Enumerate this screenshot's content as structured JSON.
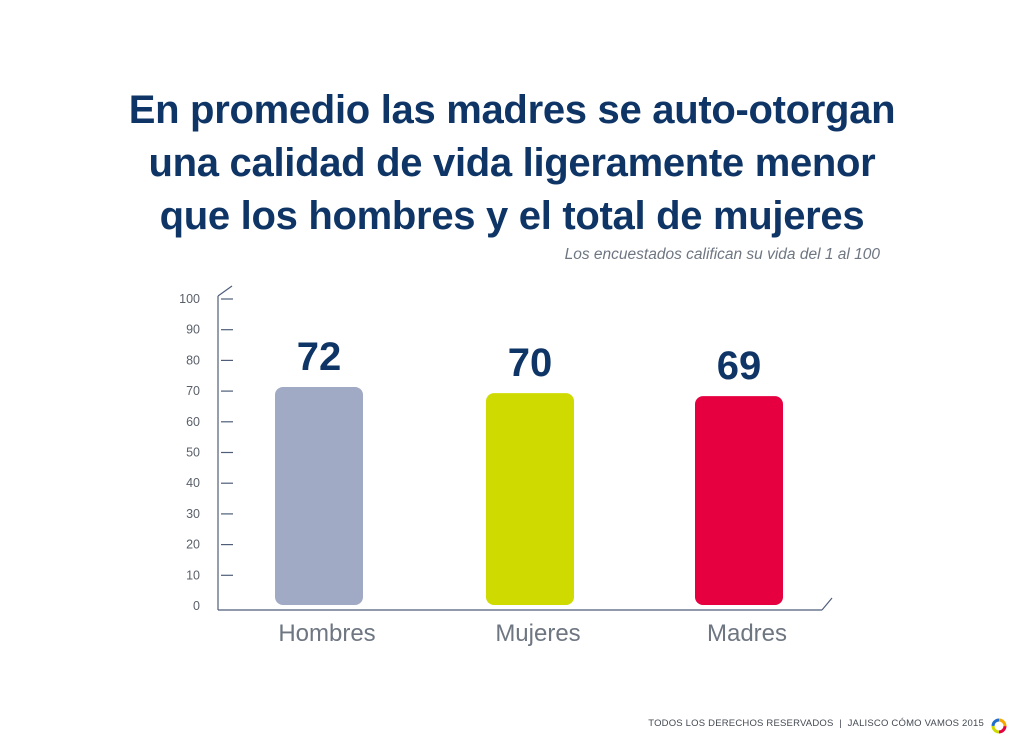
{
  "title_lines": [
    "En promedio las madres se auto-otorgan",
    "una calidad de vida ligeramente menor",
    "que los hombres y el total de mujeres"
  ],
  "subtitle": "Los encuestados califican su vida del 1 al 100",
  "footer": {
    "rights": "TODOS LOS DERECHOS RESERVADOS",
    "separator": "|",
    "brand": "JALISCO CÓMO VAMOS 2015"
  },
  "colors": {
    "title": "#0e3566",
    "axis": "#4e5d7a",
    "label": "#6e7682",
    "hombres": "#a1aac5",
    "mujeres": "#cfdb00",
    "madres": "#e60040"
  },
  "chart_data": {
    "type": "bar",
    "categories": [
      "Hombres",
      "Mujeres",
      "Madres"
    ],
    "values": [
      72,
      70,
      69
    ],
    "ylim": [
      0,
      100
    ],
    "yticks": [
      0,
      10,
      20,
      30,
      40,
      50,
      60,
      70,
      80,
      90,
      100
    ],
    "data_labels": [
      "72",
      "70",
      "69"
    ],
    "bar_colors": [
      "#a1aac5",
      "#cfdb00",
      "#e60040"
    ],
    "grid": false,
    "legend": "none"
  }
}
